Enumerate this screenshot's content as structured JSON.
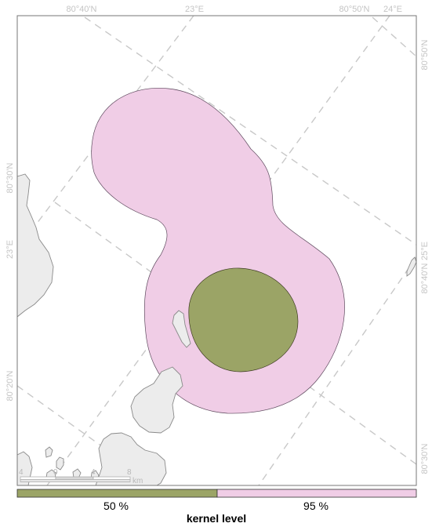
{
  "graticule_labels": {
    "top": [
      "80°40'N",
      "23°E",
      "80°50'N",
      "24°E"
    ],
    "left": [
      "80°30'N",
      "23°E",
      "80°20'N"
    ],
    "right": [
      "80°50'N",
      "25°E",
      "80°40'N",
      "80°30'N"
    ]
  },
  "scale_bar": {
    "ticks": [
      "4",
      "0",
      "4",
      "8"
    ],
    "unit": "km"
  },
  "legend": {
    "title": "kernel level",
    "items": [
      {
        "label": "50 %",
        "color": "#9ba466"
      },
      {
        "label": "95 %",
        "color": "#f0cde6"
      }
    ]
  },
  "colors": {
    "land": "#ececec",
    "land_stroke": "#8a8a8a",
    "kernel_95": "#f0cde6",
    "kernel_50": "#9ba466",
    "graticule": "#c8c8c8"
  }
}
